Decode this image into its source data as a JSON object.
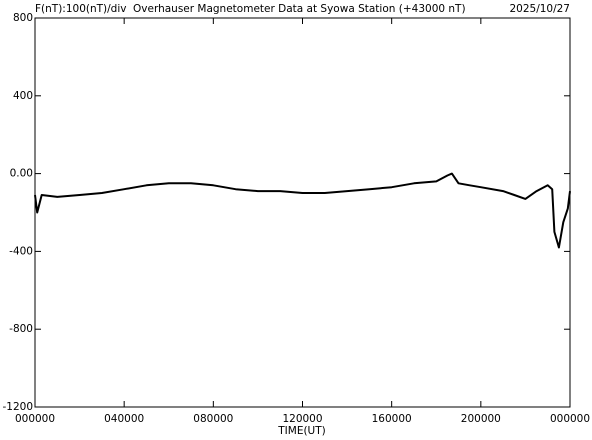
{
  "chart_data": {
    "type": "line",
    "title": "Overhauser Magnetometer Data at Syowa Station (+43000 nT)",
    "subtitle": "F(nT):100(nT)/div",
    "date": "2025/10/27",
    "x_label": "TIME(UT)",
    "xlim": [
      0,
      24
    ],
    "xticks": [
      {
        "value": 0,
        "label": "000000"
      },
      {
        "value": 4,
        "label": "040000"
      },
      {
        "value": 8,
        "label": "080000"
      },
      {
        "value": 12,
        "label": "120000"
      },
      {
        "value": 16,
        "label": "160000"
      },
      {
        "value": 20,
        "label": "200000"
      },
      {
        "value": 24,
        "label": "000000"
      }
    ],
    "ylim": [
      -1200,
      800
    ],
    "yticks": [
      -1200,
      -800,
      -400,
      {
        "value": 0,
        "label": "0.00"
      },
      400,
      800
    ],
    "color": "#000000",
    "x": [
      0,
      0.1,
      0.3,
      1,
      2,
      3,
      4,
      5,
      6,
      7,
      8,
      9,
      10,
      11,
      12,
      13,
      14,
      15,
      16,
      17,
      18,
      18.5,
      18.7,
      19,
      19.5,
      20,
      21,
      21.5,
      22,
      22.5,
      23,
      23.2,
      23.3,
      23.5,
      23.7,
      23.9,
      24
    ],
    "values": [
      -110,
      -200,
      -110,
      -120,
      -110,
      -100,
      -80,
      -60,
      -50,
      -50,
      -60,
      -80,
      -90,
      -90,
      -100,
      -100,
      -90,
      -80,
      -70,
      -50,
      -40,
      -10,
      0,
      -50,
      -60,
      -70,
      -90,
      -110,
      -130,
      -90,
      -60,
      -80,
      -300,
      -380,
      -250,
      -180,
      -90
    ]
  }
}
